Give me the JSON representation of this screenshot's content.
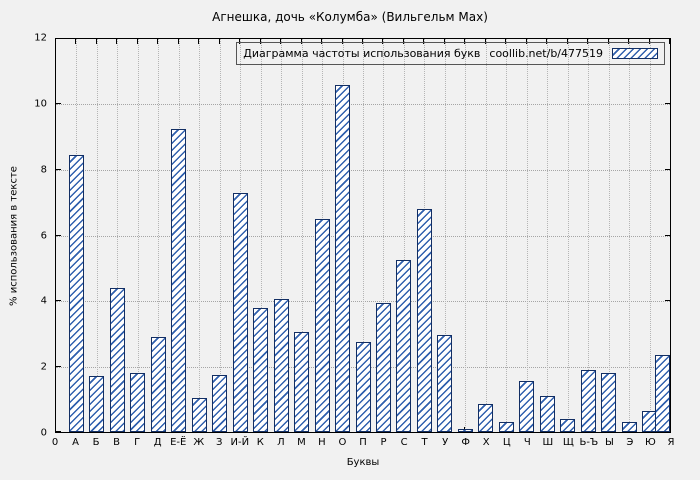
{
  "chart_data": {
    "type": "bar",
    "title": "Агнешка, дочь «Колумба» (Вильгельм Мах)",
    "legend_label": "Диаграмма частоты использования букв",
    "legend_source": "coollib.net/b/477519",
    "xlabel": "Буквы",
    "ylabel": "% использования в тексте",
    "ylim": [
      0,
      12
    ],
    "yticks": [
      0,
      2,
      4,
      6,
      8,
      10,
      12
    ],
    "grid": true,
    "legend_position": "top-right",
    "categories": [
      "0",
      "А",
      "Б",
      "В",
      "Г",
      "Д",
      "Е-Ё",
      "Ж",
      "З",
      "И-Й",
      "К",
      "Л",
      "М",
      "Н",
      "О",
      "П",
      "Р",
      "С",
      "Т",
      "У",
      "Ф",
      "Х",
      "Ц",
      "Ч",
      "Ш",
      "Щ",
      "Ь-Ъ",
      "Ы",
      "Э",
      "Ю",
      "Я"
    ],
    "values": [
      0,
      8.45,
      1.7,
      4.4,
      1.8,
      2.9,
      9.25,
      1.05,
      1.75,
      7.3,
      3.8,
      4.05,
      3.05,
      6.5,
      10.6,
      2.75,
      3.95,
      5.25,
      6.8,
      2.95,
      0.1,
      0.85,
      0.3,
      1.55,
      1.1,
      0.4,
      1.9,
      1.8,
      0.3,
      0.65,
      2.35
    ],
    "colors": {
      "bar_fill": "#ffffff",
      "bar_hatch": "#3060ae",
      "bar_border": "#122e63",
      "grid": "#a5a5a5",
      "axis": "#000000",
      "background": "#f1f1f1"
    }
  }
}
